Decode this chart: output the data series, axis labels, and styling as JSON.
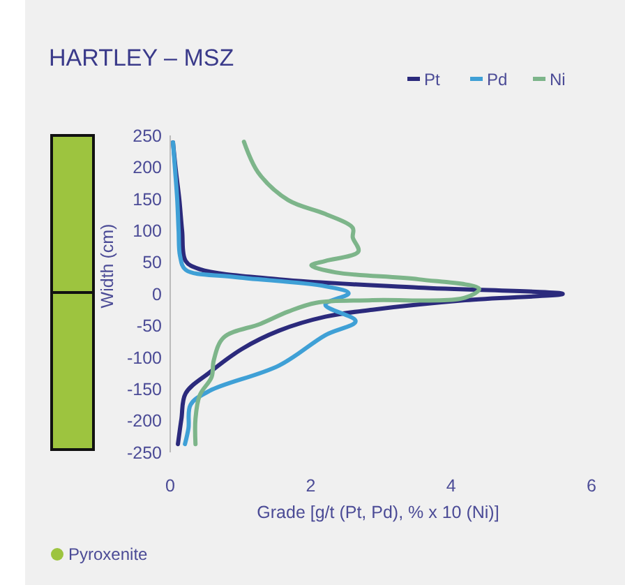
{
  "chart_data": {
    "type": "line",
    "title": "HARTLEY – MSZ",
    "xlabel": "Grade [g/t (Pt, Pd), % x 10 (Ni)]",
    "ylabel": "Width (cm)",
    "series": [
      {
        "name": "Pt",
        "color": "#2b2a7c",
        "x": [
          0.04,
          0.08,
          0.13,
          0.17,
          0.22,
          0.42,
          1.55,
          3.54,
          5.59,
          4.2,
          2.88,
          2.21,
          1.55,
          1.02,
          0.56,
          0.22,
          0.16,
          0.11
        ],
        "values": [
          239,
          195,
          149,
          99,
          52,
          39,
          23,
          10,
          0,
          -10,
          -25,
          -36,
          -58,
          -87,
          -124,
          -157,
          -197,
          -237
        ]
      },
      {
        "name": "Pd",
        "color": "#3fa0d6",
        "x": [
          0.04,
          0.07,
          0.1,
          0.12,
          0.14,
          0.22,
          0.89,
          2.21,
          2.54,
          2.21,
          2.64,
          2.21,
          1.55,
          0.56,
          0.29,
          0.26,
          0.21
        ],
        "values": [
          239,
          195,
          149,
          99,
          60,
          38,
          27,
          12,
          1,
          -17,
          -43,
          -65,
          -113,
          -153,
          -175,
          -212,
          -237
        ]
      },
      {
        "name": "Ni",
        "color": "#7db58a",
        "x": [
          1.05,
          1.25,
          1.68,
          2.21,
          2.6,
          2.6,
          2.68,
          2.21,
          2.01,
          2.35,
          3.54,
          4.4,
          4.2,
          2.88,
          2.08,
          1.68,
          1.29,
          0.76,
          0.62,
          0.59,
          0.42,
          0.36,
          0.36
        ],
        "values": [
          240,
          192,
          148,
          126,
          104,
          89,
          67,
          52,
          45,
          34,
          23,
          8,
          -6,
          -10,
          -14,
          -28,
          -47,
          -69,
          -105,
          -131,
          -160,
          -197,
          -237
        ]
      }
    ],
    "xlim": [
      0,
      6
    ],
    "xticks": [
      0,
      2,
      4,
      6
    ],
    "ylim": [
      -250,
      250
    ],
    "yticks": [
      250,
      200,
      150,
      100,
      50,
      0,
      -50,
      -100,
      -150,
      -200,
      -250
    ],
    "legend": "top right",
    "grid": false,
    "annotations": [
      "Pyroxenite"
    ]
  }
}
